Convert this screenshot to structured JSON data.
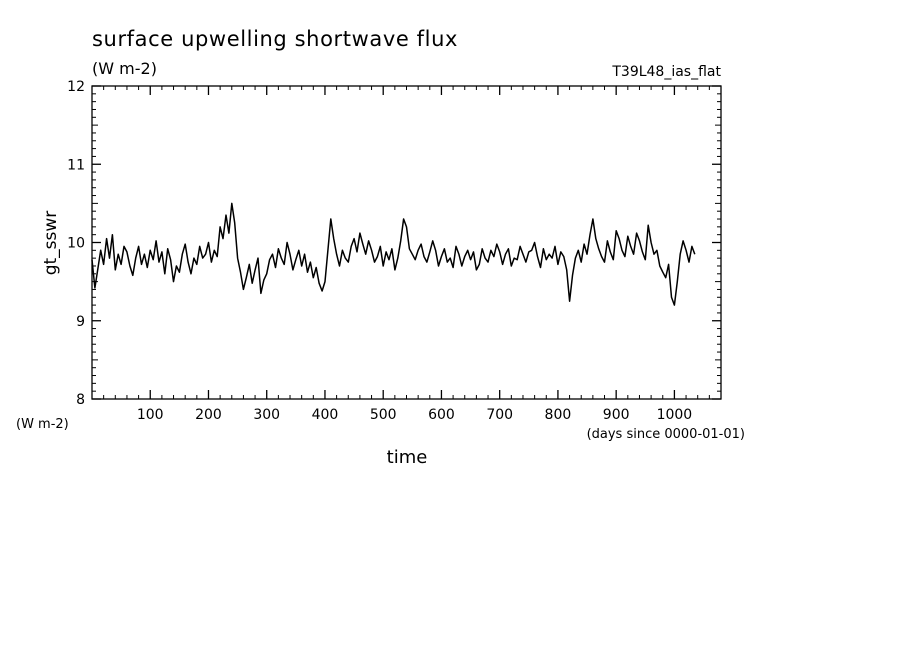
{
  "chart_data": {
    "type": "line",
    "title": "surface upwelling shortwave flux",
    "subtitle": "(W m-2)",
    "run_label": "T39L48_ias_flat",
    "ylabel": "gt_sswr",
    "yunits": "(W m-2)",
    "xlabel": "time",
    "xunits": "(days since 0000-01-01)",
    "xlim": [
      0,
      1080
    ],
    "ylim": [
      8,
      12
    ],
    "xticks": [
      100,
      200,
      300,
      400,
      500,
      600,
      700,
      800,
      900,
      1000
    ],
    "yticks": [
      8,
      9,
      10,
      11,
      12
    ],
    "grid": false,
    "line_color": "#000000",
    "x_step": 5,
    "series": [
      {
        "values": [
          9.78,
          9.42,
          9.66,
          9.9,
          9.72,
          10.05,
          9.8,
          10.1,
          9.65,
          9.85,
          9.72,
          9.95,
          9.88,
          9.7,
          9.58,
          9.8,
          9.95,
          9.72,
          9.85,
          9.68,
          9.9,
          9.78,
          10.02,
          9.75,
          9.88,
          9.6,
          9.92,
          9.78,
          9.5,
          9.7,
          9.62,
          9.85,
          9.98,
          9.75,
          9.6,
          9.8,
          9.72,
          9.95,
          9.8,
          9.85,
          10.0,
          9.75,
          9.9,
          9.82,
          10.2,
          10.05,
          10.35,
          10.12,
          10.5,
          10.25,
          9.8,
          9.62,
          9.4,
          9.55,
          9.72,
          9.48,
          9.65,
          9.8,
          9.35,
          9.52,
          9.6,
          9.78,
          9.85,
          9.68,
          9.92,
          9.8,
          9.72,
          10.0,
          9.85,
          9.65,
          9.78,
          9.9,
          9.7,
          9.85,
          9.62,
          9.75,
          9.55,
          9.68,
          9.48,
          9.38,
          9.5,
          9.9,
          10.3,
          10.05,
          9.85,
          9.7,
          9.9,
          9.8,
          9.75,
          9.95,
          10.05,
          9.88,
          10.12,
          9.98,
          9.85,
          10.02,
          9.9,
          9.75,
          9.82,
          9.95,
          9.7,
          9.88,
          9.78,
          9.92,
          9.65,
          9.8,
          10.02,
          10.3,
          10.2,
          9.92,
          9.85,
          9.78,
          9.9,
          9.98,
          9.82,
          9.75,
          9.88,
          10.02,
          9.9,
          9.7,
          9.82,
          9.92,
          9.75,
          9.8,
          9.68,
          9.95,
          9.85,
          9.7,
          9.82,
          9.9,
          9.78,
          9.88,
          9.65,
          9.72,
          9.92,
          9.8,
          9.75,
          9.9,
          9.82,
          9.98,
          9.88,
          9.72,
          9.85,
          9.92,
          9.7,
          9.8,
          9.78,
          9.95,
          9.85,
          9.75,
          9.88,
          9.9,
          10.0,
          9.82,
          9.68,
          9.92,
          9.78,
          9.85,
          9.8,
          9.95,
          9.72,
          9.88,
          9.82,
          9.65,
          9.25,
          9.58,
          9.8,
          9.9,
          9.75,
          9.98,
          9.85,
          10.1,
          10.3,
          10.05,
          9.92,
          9.82,
          9.75,
          10.02,
          9.88,
          9.78,
          10.15,
          10.05,
          9.9,
          9.82,
          10.08,
          9.95,
          9.85,
          10.12,
          10.02,
          9.88,
          9.78,
          10.22,
          10.0,
          9.85,
          9.9,
          9.7,
          9.62,
          9.55,
          9.72,
          9.3,
          9.2,
          9.5,
          9.85,
          10.02,
          9.9,
          9.75,
          9.95,
          9.85
        ],
        "color": "#000000"
      }
    ]
  }
}
